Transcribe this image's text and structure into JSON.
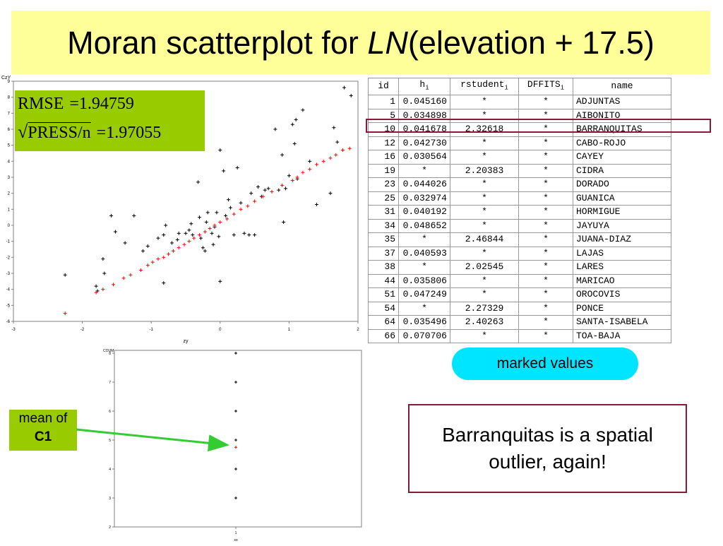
{
  "slide": {
    "title_prefix": "Moran scatterplot for ",
    "title_italic": "LN",
    "title_suffix": "(elevation + 17.5)"
  },
  "stats": {
    "rmse_label": "RMSE",
    "rmse_value": "1.94759",
    "press_label": "PRESS/n",
    "press_value": "1.97055",
    "equals": "="
  },
  "table": {
    "headers": [
      "id",
      "h",
      "rstudent",
      "DFFITS",
      "name"
    ],
    "header_subscript": "i",
    "rows": [
      [
        "1",
        "0.045160",
        "*",
        "*",
        "ADJUNTAS"
      ],
      [
        "5",
        "0.034898",
        "*",
        "*",
        "AIBONITO"
      ],
      [
        "10",
        "0.041678",
        "2.32618",
        "*",
        "BARRANQUITAS"
      ],
      [
        "12",
        "0.042730",
        "*",
        "*",
        "CABO-ROJO"
      ],
      [
        "16",
        "0.030564",
        "*",
        "*",
        "CAYEY"
      ],
      [
        "19",
        "*",
        "2.20383",
        "*",
        "CIDRA"
      ],
      [
        "23",
        "0.044026",
        "*",
        "*",
        "DORADO"
      ],
      [
        "25",
        "0.032974",
        "*",
        "*",
        "GUANICA"
      ],
      [
        "31",
        "0.040192",
        "*",
        "*",
        "HORMIGUE"
      ],
      [
        "34",
        "0.048652",
        "*",
        "*",
        "JAYUYA"
      ],
      [
        "35",
        "*",
        "2.46844",
        "*",
        "JUANA-DIAZ"
      ],
      [
        "37",
        "0.040593",
        "*",
        "*",
        "LAJAS"
      ],
      [
        "38",
        "*",
        "2.02545",
        "*",
        "LARES"
      ],
      [
        "44",
        "0.035806",
        "*",
        "*",
        "MARICAO"
      ],
      [
        "51",
        "0.047249",
        "*",
        "*",
        "OROCOVIS"
      ],
      [
        "54",
        "*",
        "2.27329",
        "*",
        "PONCE"
      ],
      [
        "64",
        "0.035496",
        "2.40263",
        "*",
        "SANTA-ISABELA"
      ],
      [
        "66",
        "0.070706",
        "*",
        "*",
        "TOA-BAJA"
      ]
    ],
    "highlighted_row_id": "10"
  },
  "badge": {
    "text": "marked values",
    "color": "#00e5ff"
  },
  "mean_label": {
    "line1": "mean of",
    "line2": "C1"
  },
  "callout": {
    "line1": "Barranquitas is a spatial",
    "line2": "outlier, again!"
  },
  "colors": {
    "title_bg": "#ffff99",
    "green_box": "#99cc00",
    "highlight_border": "#8b1a3a",
    "fit_marker": "#ff0000"
  },
  "chart_data": [
    {
      "type": "scatter",
      "title": "",
      "ylabel": "CzY",
      "xlabel": "zy",
      "xlim": [
        -3,
        2
      ],
      "ylim": [
        -6,
        9
      ],
      "x_ticks": [
        "-3",
        "-2",
        "-1",
        "0",
        "1",
        "2"
      ],
      "y_ticks": [
        "-6",
        "-5",
        "-4",
        "-3",
        "-2",
        "-1",
        "0",
        "1",
        "2",
        "3",
        "4",
        "5",
        "6",
        "7",
        "8",
        "9"
      ],
      "series": [
        {
          "marker_color": "#000000",
          "points": [
            [
              -2.25,
              -3.1
            ],
            [
              -1.8,
              -3.8
            ],
            [
              -1.78,
              -4.1
            ],
            [
              -1.7,
              -2.1
            ],
            [
              -1.68,
              -3.0
            ],
            [
              -1.58,
              0.6
            ],
            [
              -1.52,
              -0.4
            ],
            [
              -1.38,
              -1.1
            ],
            [
              -1.25,
              0.6
            ],
            [
              -1.12,
              -1.6
            ],
            [
              -1.05,
              -1.3
            ],
            [
              -0.9,
              -0.8
            ],
            [
              -0.82,
              -0.6
            ],
            [
              -0.82,
              -3.6
            ],
            [
              -0.79,
              0.0
            ],
            [
              -0.7,
              -1.1
            ],
            [
              -0.62,
              -0.9
            ],
            [
              -0.6,
              -0.5
            ],
            [
              -0.5,
              -0.5
            ],
            [
              -0.45,
              -0.3
            ],
            [
              -0.42,
              0.1
            ],
            [
              -0.4,
              -0.6
            ],
            [
              -0.32,
              2.7
            ],
            [
              -0.3,
              0.5
            ],
            [
              -0.28,
              -0.8
            ],
            [
              -0.25,
              -1.4
            ],
            [
              -0.22,
              -1.6
            ],
            [
              -0.2,
              0.2
            ],
            [
              -0.18,
              0.8
            ],
            [
              -0.12,
              -0.5
            ],
            [
              -0.1,
              -1.2
            ],
            [
              -0.08,
              -0.1
            ],
            [
              -0.05,
              0.8
            ],
            [
              -0.02,
              -0.7
            ],
            [
              0.0,
              4.7
            ],
            [
              0.0,
              -3.5
            ],
            [
              0.05,
              3.4
            ],
            [
              0.08,
              0.6
            ],
            [
              0.12,
              1.6
            ],
            [
              0.15,
              1.1
            ],
            [
              0.2,
              -0.6
            ],
            [
              0.25,
              3.6
            ],
            [
              0.3,
              1.4
            ],
            [
              0.35,
              -0.5
            ],
            [
              0.42,
              -0.6
            ],
            [
              0.45,
              2.0
            ],
            [
              0.5,
              -0.6
            ],
            [
              0.55,
              2.4
            ],
            [
              0.6,
              1.8
            ],
            [
              0.65,
              2.2
            ],
            [
              0.7,
              2.3
            ],
            [
              0.8,
              6.0
            ],
            [
              0.85,
              2.2
            ],
            [
              0.9,
              4.4
            ],
            [
              0.92,
              0.2
            ],
            [
              0.95,
              2.3
            ],
            [
              1.0,
              3.1
            ],
            [
              1.05,
              6.3
            ],
            [
              1.08,
              5.1
            ],
            [
              1.1,
              6.6
            ],
            [
              1.12,
              2.9
            ],
            [
              1.2,
              7.2
            ],
            [
              1.3,
              4.0
            ],
            [
              1.4,
              1.3
            ],
            [
              1.6,
              2.0
            ],
            [
              1.65,
              6.1
            ],
            [
              1.7,
              5.2
            ],
            [
              1.8,
              8.6
            ],
            [
              1.9,
              8.1
            ]
          ]
        },
        {
          "marker_color": "#ff0000",
          "points": [
            [
              -2.25,
              -5.5
            ],
            [
              -1.8,
              -4.2
            ],
            [
              -1.7,
              -4.0
            ],
            [
              -1.55,
              -3.7
            ],
            [
              -1.4,
              -3.3
            ],
            [
              -1.3,
              -3.1
            ],
            [
              -1.15,
              -2.8
            ],
            [
              -1.05,
              -2.5
            ],
            [
              -0.98,
              -2.3
            ],
            [
              -0.9,
              -2.1
            ],
            [
              -0.82,
              -2.0
            ],
            [
              -0.75,
              -1.8
            ],
            [
              -0.68,
              -1.6
            ],
            [
              -0.6,
              -1.4
            ],
            [
              -0.52,
              -1.2
            ],
            [
              -0.45,
              -1.0
            ],
            [
              -0.38,
              -0.8
            ],
            [
              -0.3,
              -0.6
            ],
            [
              -0.22,
              -0.4
            ],
            [
              -0.15,
              -0.2
            ],
            [
              -0.08,
              0.0
            ],
            [
              0.0,
              0.2
            ],
            [
              0.1,
              0.4
            ],
            [
              0.2,
              0.7
            ],
            [
              0.3,
              1.0
            ],
            [
              0.4,
              1.2
            ],
            [
              0.5,
              1.5
            ],
            [
              0.62,
              1.8
            ],
            [
              0.75,
              2.1
            ],
            [
              0.9,
              2.5
            ],
            [
              1.05,
              2.8
            ],
            [
              1.12,
              3.0
            ],
            [
              1.2,
              3.3
            ],
            [
              1.3,
              3.5
            ],
            [
              1.4,
              3.8
            ],
            [
              1.5,
              4.0
            ],
            [
              1.6,
              4.2
            ],
            [
              1.68,
              4.4
            ],
            [
              1.78,
              4.7
            ],
            [
              1.88,
              4.8
            ]
          ]
        }
      ]
    },
    {
      "type": "scatter",
      "title": "",
      "ylabel": "COUM",
      "xlabel": "xo",
      "ylim": [
        2,
        8
      ],
      "y_ticks": [
        "2",
        "3",
        "4",
        "5",
        "6",
        "7",
        "8"
      ],
      "x_ticks": [
        "1"
      ],
      "series": [
        {
          "marker_color": "#000000",
          "points": [
            [
              1,
              3
            ],
            [
              1,
              4
            ],
            [
              1,
              5
            ],
            [
              1,
              6
            ],
            [
              1,
              7
            ],
            [
              1,
              8
            ]
          ]
        },
        {
          "marker_color": "#ff0000",
          "points": [
            [
              1,
              4.75
            ]
          ]
        }
      ]
    }
  ]
}
